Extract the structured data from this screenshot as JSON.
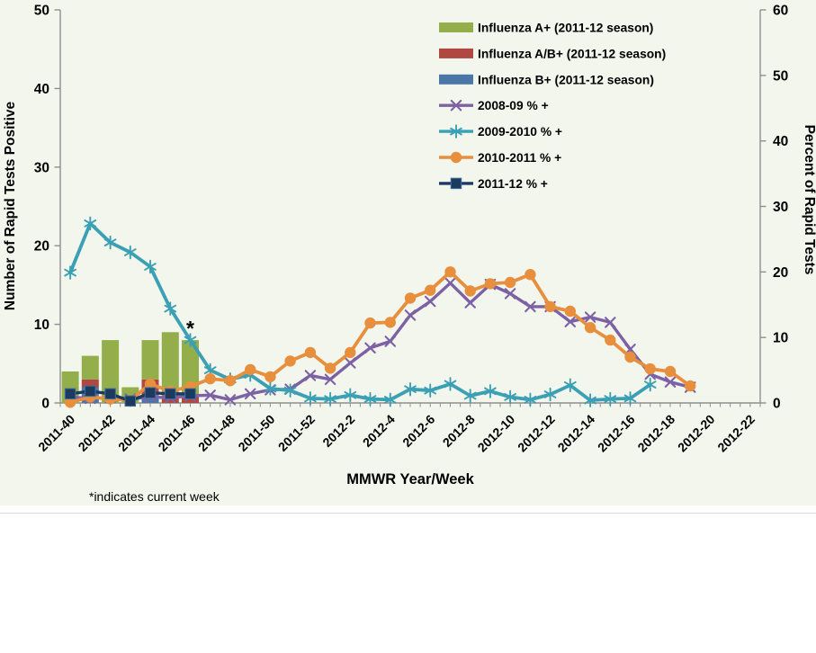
{
  "chart_data": {
    "type": "combo-bar-line",
    "title": "",
    "xlabel": "MMWR Year/Week",
    "ylabel_left": "Number of Rapid Tests Positive",
    "ylabel_right": "Percent of Rapid Tests",
    "ylim_left": [
      0,
      50
    ],
    "ylim_right": [
      0,
      60
    ],
    "ytick_interval": 10,
    "grid": "off",
    "legend_position": "top-right-inside",
    "footnote": "*indicates current week",
    "annotation": {
      "text": "*",
      "category": "2011-46",
      "percent_y": 11.5
    },
    "colors": {
      "background": "#f3f6ed",
      "axis": "#8f8f8f",
      "tick_text": "#000000",
      "influenza_a": "#94ae4b",
      "influenza_ab": "#b04741",
      "influenza_b": "#4a77a8",
      "s2008_09": "#7c61a5",
      "s2009_10": "#3ba0b4",
      "s2010_11": "#e78f3d",
      "s2011_12": "#1c3a5e"
    },
    "categories": [
      "2011-40",
      "2011-41",
      "2011-42",
      "2011-43",
      "2011-44",
      "2011-45",
      "2011-46",
      "2011-47",
      "2011-48",
      "2011-49",
      "2011-50",
      "2011-51",
      "2011-52",
      "2012-1",
      "2012-2",
      "2012-3",
      "2012-4",
      "2012-5",
      "2012-6",
      "2012-7",
      "2012-8",
      "2012-9",
      "2012-10",
      "2012-11",
      "2012-12",
      "2012-13",
      "2012-14",
      "2012-15",
      "2012-16",
      "2012-17",
      "2012-18",
      "2012-19",
      "2012-20",
      "2012-21",
      "2012-22"
    ],
    "xtick_labels": [
      "2011-40",
      "2011-42",
      "2011-44",
      "2011-46",
      "2011-48",
      "2011-50",
      "2011-52",
      "2012-2",
      "2012-4",
      "2012-6",
      "2012-8",
      "2012-10",
      "2012-12",
      "2012-14",
      "2012-16",
      "2012-18",
      "2012-20",
      "2012-22"
    ],
    "bar_series_bottom_to_top": [
      {
        "name": "Influenza B+ (2011-12 season)",
        "color": "#4a77a8",
        "values": [
          0,
          2,
          0,
          0,
          1,
          0,
          0
        ]
      },
      {
        "name": "Influenza A/B+ (2011-12 season)",
        "color": "#b04741",
        "values": [
          0,
          1,
          0,
          0,
          2,
          1,
          1
        ]
      },
      {
        "name": "Influenza A+ (2011-12 season)",
        "color": "#94ae4b",
        "values": [
          4,
          3,
          8,
          2,
          5,
          8,
          7
        ]
      }
    ],
    "line_series": [
      {
        "name": "2008-09 % +",
        "color": "#7c61a5",
        "marker": "x",
        "axis": "right",
        "stroke": 3.4,
        "values": [
          0.9,
          0.7,
          0.8,
          0.6,
          0.9,
          0.8,
          1.1,
          1.2,
          0.5,
          1.4,
          2.0,
          2.1,
          4.2,
          3.6,
          6.1,
          8.4,
          9.4,
          13.4,
          15.5,
          18.3,
          15.3,
          18.1,
          16.7,
          14.7,
          14.7,
          12.4,
          13.1,
          12.3,
          8.2,
          4.4,
          3.2,
          2.4
        ]
      },
      {
        "name": "2009-2010 % +",
        "color": "#3ba0b4",
        "marker": "asterisk",
        "axis": "right",
        "stroke": 3.8,
        "values": [
          19.9,
          27.4,
          24.5,
          23.0,
          20.8,
          14.4,
          9.6,
          5.0,
          3.6,
          4.3,
          2.2,
          1.9,
          0.7,
          0.6,
          1.2,
          0.6,
          0.5,
          2.1,
          1.9,
          2.9,
          1.1,
          1.8,
          0.9,
          0.5,
          1.3,
          2.7,
          0.4,
          0.6,
          0.7,
          2.8
        ]
      },
      {
        "name": "2010-2011 % +",
        "color": "#e78f3d",
        "marker": "circle",
        "axis": "right",
        "stroke": 3.8,
        "values": [
          0.1,
          0.9,
          0.6,
          0.4,
          2.9,
          1.8,
          2.5,
          3.7,
          3.4,
          5.1,
          4.0,
          6.4,
          7.7,
          5.3,
          7.7,
          12.2,
          12.3,
          16.0,
          17.2,
          20.0,
          17.1,
          18.2,
          18.4,
          19.6,
          14.7,
          14.0,
          11.5,
          9.6,
          7.0,
          5.2,
          4.8,
          2.6
        ]
      },
      {
        "name": "2011-12 % +",
        "color": "#1c3a5e",
        "marker": "square",
        "axis": "right",
        "stroke": 3.4,
        "values": [
          1.4,
          1.8,
          1.4,
          0.3,
          1.55,
          1.4,
          1.4
        ]
      }
    ],
    "legend_items": [
      {
        "label": "Influenza A+ (2011-12 season)",
        "swatch": "bar",
        "color": "#94ae4b"
      },
      {
        "label": "Influenza A/B+ (2011-12 season)",
        "swatch": "bar",
        "color": "#b04741"
      },
      {
        "label": "Influenza B+ (2011-12 season)",
        "swatch": "bar",
        "color": "#4a77a8"
      },
      {
        "label": "2008-09 % +",
        "swatch": "line",
        "marker": "x",
        "color": "#7c61a5"
      },
      {
        "label": "2009-2010 % +",
        "swatch": "line",
        "marker": "asterisk",
        "color": "#3ba0b4"
      },
      {
        "label": "2010-2011 % +",
        "swatch": "line",
        "marker": "circle",
        "color": "#e78f3d"
      },
      {
        "label": "2011-12 % +",
        "swatch": "line",
        "marker": "square",
        "color": "#1c3a5e"
      }
    ],
    "ytick_labels_left": [
      "0",
      "10",
      "20",
      "30",
      "40",
      "50"
    ],
    "ytick_labels_right": [
      "0",
      "10",
      "20",
      "30",
      "40",
      "50",
      "60"
    ]
  }
}
